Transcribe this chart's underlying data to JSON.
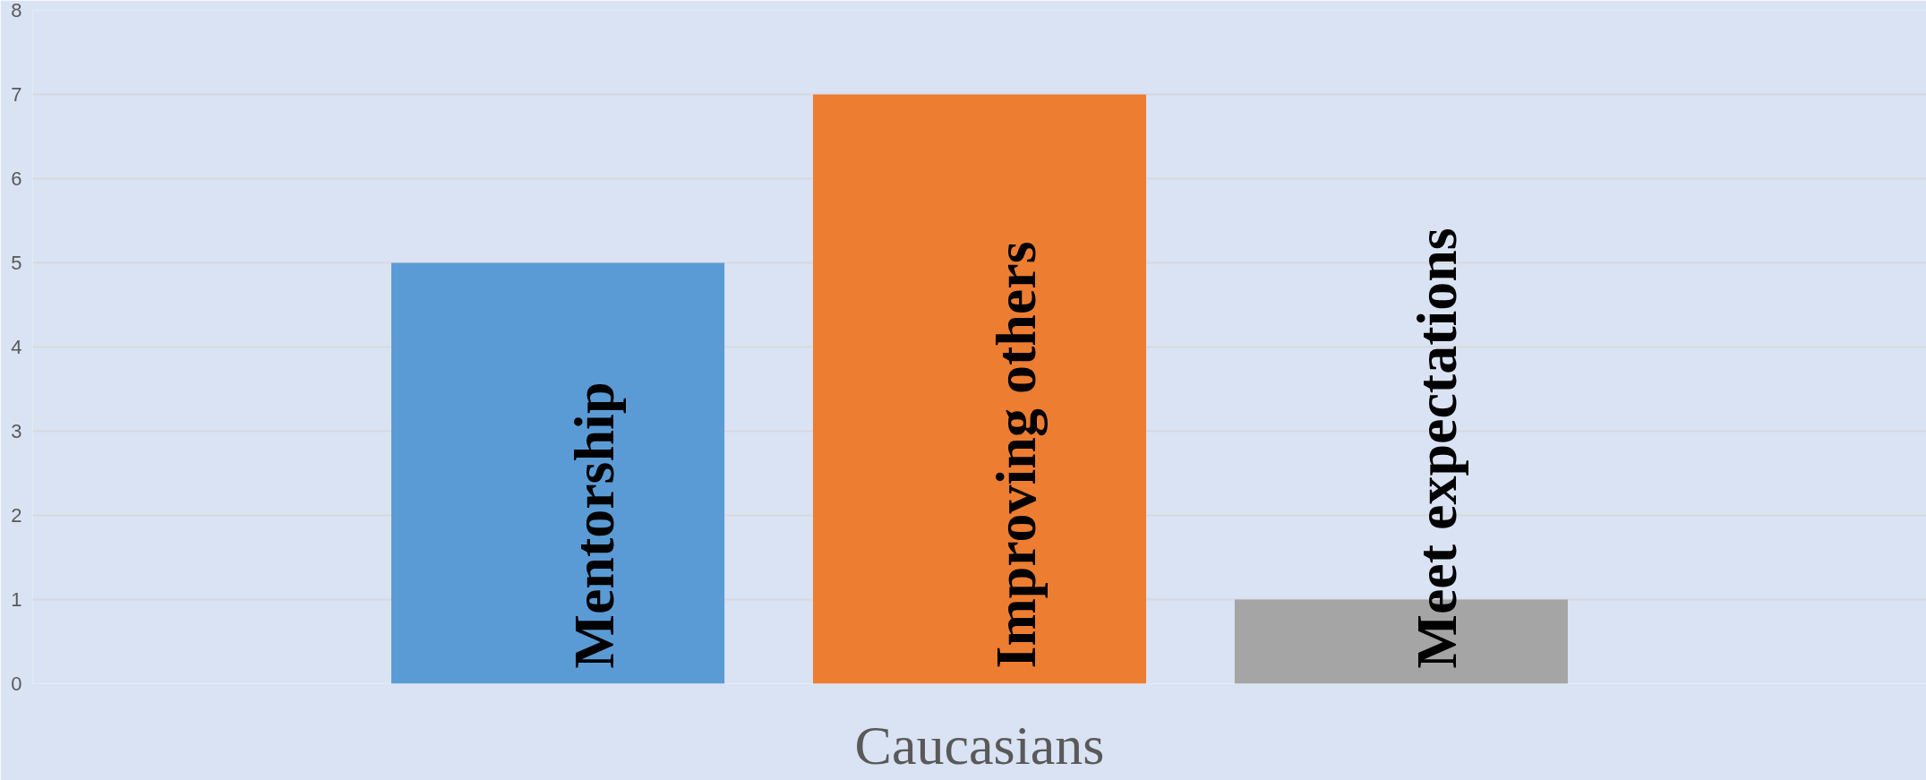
{
  "chart_data": {
    "type": "bar",
    "categories": [
      "Caucasians"
    ],
    "series": [
      {
        "name": "Mentorship",
        "color": "#5b9bd5",
        "values": [
          5
        ]
      },
      {
        "name": "Improving others",
        "color": "#ed7d31",
        "values": [
          7
        ]
      },
      {
        "name": "Meet expectations",
        "color": "#a5a5a5",
        "values": [
          1
        ]
      }
    ],
    "ylim": [
      0,
      8
    ],
    "yticks": [
      0,
      1,
      2,
      3,
      4,
      5,
      6,
      7,
      8
    ],
    "grid": "y",
    "legend": false
  }
}
